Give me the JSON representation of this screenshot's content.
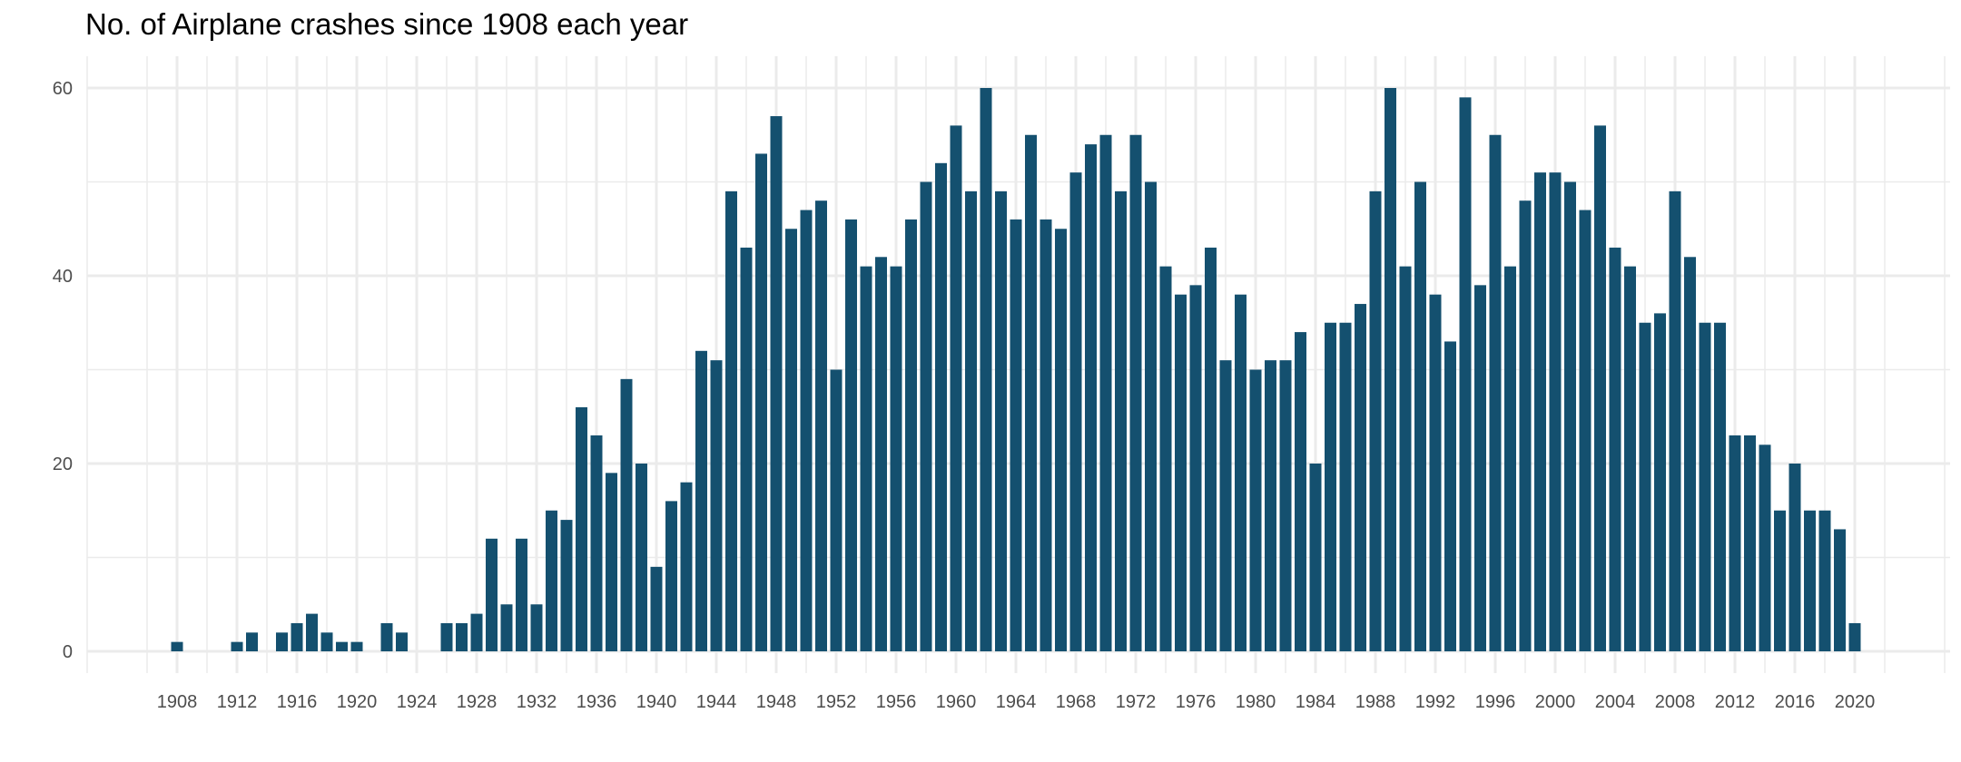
{
  "chart_data": {
    "type": "bar",
    "title": "No. of Airplane crashes since 1908 each year",
    "xlabel": "",
    "ylabel": "",
    "bar_color": "#14506f",
    "grid": true,
    "grid_color": "#ebebeb",
    "background": "#ffffff",
    "ylim": [
      0,
      60
    ],
    "y_ticks": [
      0,
      20,
      40,
      60
    ],
    "xlim": [
      1904,
      2024
    ],
    "x_ticks": [
      1908,
      1912,
      1916,
      1920,
      1924,
      1928,
      1932,
      1936,
      1940,
      1944,
      1948,
      1952,
      1956,
      1960,
      1964,
      1968,
      1972,
      1976,
      1980,
      1984,
      1988,
      1992,
      1996,
      2000,
      2004,
      2008,
      2012,
      2016,
      2020
    ],
    "x_tick_labels": [
      "1908",
      "1912",
      "1916",
      "1920",
      "1924",
      "1928",
      "1932",
      "1936",
      "1940",
      "1944",
      "1948",
      "1952",
      "1956",
      "1960",
      "1964",
      "1968",
      "1972",
      "1976",
      "1980",
      "1984",
      "1988",
      "1992",
      "1996",
      "2000",
      "2004",
      "2008",
      "2012",
      "2016",
      "2020"
    ],
    "y_tick_labels": [
      "0",
      "20",
      "40",
      "60"
    ],
    "categories": [
      1908,
      1912,
      1913,
      1915,
      1916,
      1917,
      1918,
      1919,
      1920,
      1922,
      1923,
      1926,
      1927,
      1928,
      1929,
      1930,
      1931,
      1932,
      1933,
      1934,
      1935,
      1936,
      1937,
      1938,
      1939,
      1940,
      1941,
      1942,
      1943,
      1944,
      1945,
      1946,
      1947,
      1948,
      1949,
      1950,
      1951,
      1952,
      1953,
      1954,
      1955,
      1956,
      1957,
      1958,
      1959,
      1960,
      1961,
      1962,
      1963,
      1964,
      1965,
      1966,
      1967,
      1968,
      1969,
      1970,
      1971,
      1972,
      1973,
      1974,
      1975,
      1976,
      1977,
      1978,
      1979,
      1980,
      1981,
      1982,
      1983,
      1984,
      1985,
      1986,
      1987,
      1988,
      1989,
      1990,
      1991,
      1992,
      1993,
      1994,
      1995,
      1996,
      1997,
      1998,
      1999,
      2000,
      2001,
      2002,
      2003,
      2004,
      2005,
      2006,
      2007,
      2008,
      2009,
      2010,
      2011,
      2012,
      2013,
      2014,
      2015,
      2016,
      2017,
      2018,
      2019,
      2020
    ],
    "values": [
      1,
      1,
      2,
      2,
      3,
      4,
      2,
      1,
      1,
      3,
      2,
      3,
      3,
      4,
      12,
      5,
      12,
      5,
      15,
      14,
      26,
      23,
      19,
      29,
      20,
      9,
      16,
      18,
      32,
      31,
      49,
      43,
      53,
      57,
      45,
      47,
      48,
      30,
      46,
      41,
      42,
      41,
      46,
      50,
      52,
      56,
      49,
      60,
      49,
      46,
      55,
      46,
      45,
      51,
      54,
      55,
      49,
      55,
      50,
      41,
      38,
      39,
      43,
      31,
      38,
      30,
      31,
      31,
      34,
      20,
      35,
      35,
      37,
      49,
      60,
      41,
      50,
      38,
      33,
      59,
      39,
      55,
      41,
      48,
      51,
      51,
      50,
      47,
      56,
      43,
      41,
      35,
      36,
      49,
      42,
      35,
      35,
      23,
      23,
      22,
      15,
      20,
      15,
      15,
      13,
      3
    ]
  }
}
